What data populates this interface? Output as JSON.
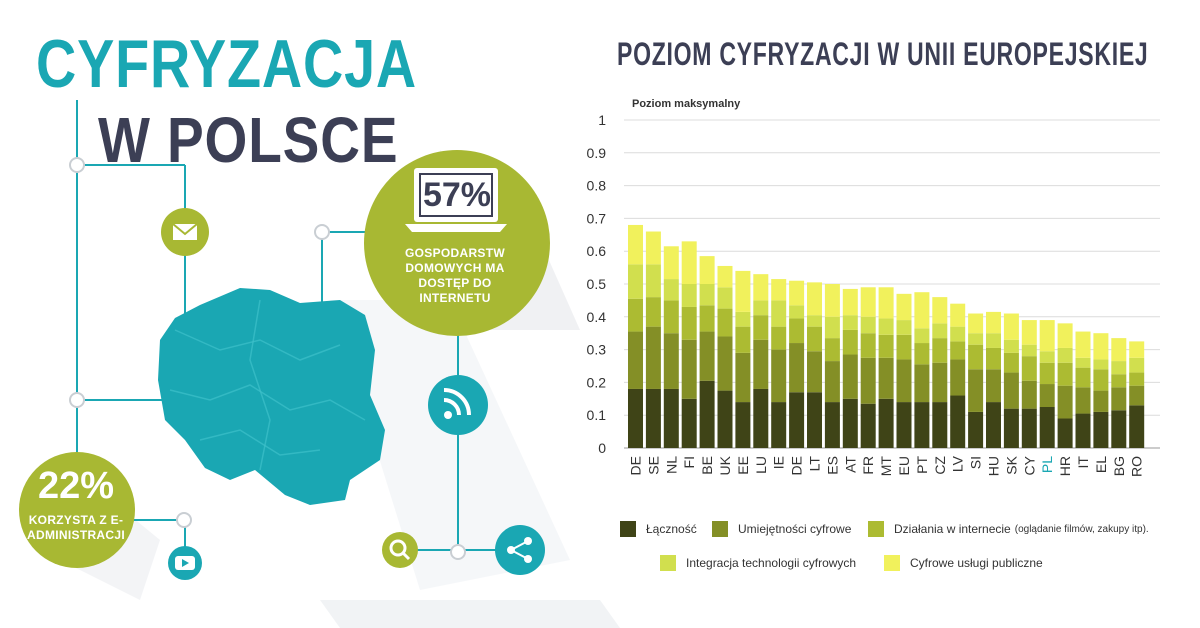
{
  "title": {
    "line1": "CYFRYZACJA",
    "line2": "W POLSCE"
  },
  "stats": [
    {
      "value": "57%",
      "label": "GOSPODARSTW DOMOWYCH MA DOSTĘP DO INTERNETU"
    },
    {
      "value": "22%",
      "label": "KORZYSTA Z E-ADMINISTRACJI"
    }
  ],
  "icons": [
    "mail-icon",
    "rss-icon",
    "share-icon",
    "search-icon",
    "play-icon",
    "laptop-icon",
    "poland-map"
  ],
  "colors": {
    "teal": "#1aa7b3",
    "olive": "#a8b833",
    "dark": "#3c3f55",
    "highlight": "#1aa7b3"
  },
  "chart_data": {
    "type": "bar",
    "stacked": true,
    "title": "POZIOM CYFRYZACJI W UNII EUROPEJSKIEJ",
    "ylabel": "Poziom maksymalny",
    "ylim": [
      0,
      1
    ],
    "yticks": [
      "0",
      "0.1",
      "0.2",
      "0.3",
      "0.4",
      "0.5",
      "0.6",
      "0.7",
      "0.8",
      "0.9",
      "1"
    ],
    "grid": true,
    "highlight_category": "PL",
    "categories": [
      "DE",
      "SE",
      "NL",
      "FI",
      "BE",
      "UK",
      "EE",
      "LU",
      "IE",
      "DE",
      "LT",
      "ES",
      "AT",
      "FR",
      "MT",
      "EU",
      "PT",
      "CZ",
      "LV",
      "SI",
      "HU",
      "SK",
      "CY",
      "PL",
      "HR",
      "IT",
      "EL",
      "BG",
      "RO"
    ],
    "series": [
      {
        "name": "Łączność",
        "color": "#3f4417",
        "values": [
          0.18,
          0.18,
          0.18,
          0.15,
          0.205,
          0.175,
          0.14,
          0.18,
          0.14,
          0.17,
          0.17,
          0.14,
          0.15,
          0.135,
          0.15,
          0.14,
          0.14,
          0.14,
          0.16,
          0.11,
          0.14,
          0.12,
          0.12,
          0.125,
          0.09,
          0.105,
          0.11,
          0.115,
          0.13
        ]
      },
      {
        "name": "Umiejętności cyfrowe",
        "color": "#848f26",
        "values": [
          0.175,
          0.19,
          0.17,
          0.18,
          0.15,
          0.165,
          0.15,
          0.15,
          0.16,
          0.15,
          0.125,
          0.125,
          0.135,
          0.14,
          0.125,
          0.13,
          0.115,
          0.12,
          0.11,
          0.13,
          0.1,
          0.11,
          0.085,
          0.07,
          0.1,
          0.08,
          0.065,
          0.07,
          0.06
        ]
      },
      {
        "name": "Działania w internecie",
        "sub": "(oglądanie filmów, zakupy itp).",
        "color": "#acbb32",
        "values": [
          0.1,
          0.09,
          0.1,
          0.1,
          0.08,
          0.085,
          0.08,
          0.075,
          0.07,
          0.075,
          0.075,
          0.07,
          0.075,
          0.075,
          0.07,
          0.075,
          0.065,
          0.075,
          0.055,
          0.075,
          0.065,
          0.06,
          0.075,
          0.065,
          0.07,
          0.06,
          0.065,
          0.04,
          0.04
        ]
      },
      {
        "name": "Integracja technologii cyfrowych",
        "color": "#d1df4e",
        "values": [
          0.105,
          0.1,
          0.065,
          0.07,
          0.065,
          0.065,
          0.045,
          0.045,
          0.08,
          0.04,
          0.035,
          0.065,
          0.045,
          0.05,
          0.05,
          0.045,
          0.045,
          0.045,
          0.045,
          0.035,
          0.045,
          0.04,
          0.035,
          0.035,
          0.045,
          0.03,
          0.03,
          0.04,
          0.045
        ]
      },
      {
        "name": "Cyfrowe usługi publiczne",
        "color": "#f1f15c",
        "values": [
          0.12,
          0.1,
          0.1,
          0.13,
          0.085,
          0.065,
          0.125,
          0.08,
          0.065,
          0.075,
          0.1,
          0.1,
          0.08,
          0.09,
          0.095,
          0.08,
          0.11,
          0.08,
          0.07,
          0.06,
          0.065,
          0.08,
          0.075,
          0.095,
          0.075,
          0.08,
          0.08,
          0.07,
          0.05
        ]
      }
    ]
  }
}
